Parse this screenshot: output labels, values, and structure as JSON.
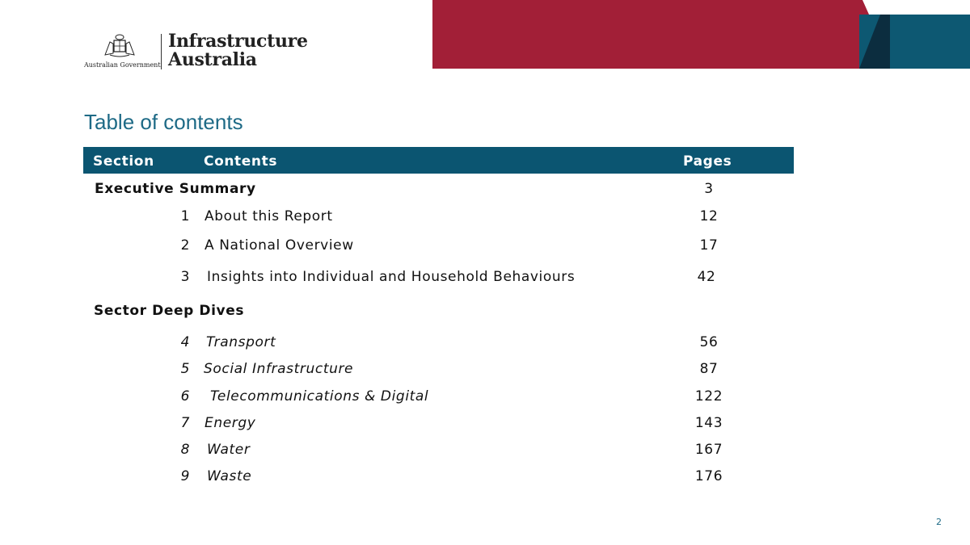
{
  "header": {
    "org_name_line1": "Infrastructure",
    "org_name_line2": "Australia",
    "government_label": "Australian Government",
    "colors": {
      "banner_red": "#a21f37",
      "banner_blue": "#0d5872",
      "banner_dark": "#0c2d3f"
    }
  },
  "page_title": "Table of contents",
  "table": {
    "columns": {
      "section": "Section",
      "contents": "Contents",
      "pages": "Pages"
    },
    "executive_summary": {
      "label": "Executive Summary",
      "page": "3"
    },
    "chapters": [
      {
        "num": "1",
        "title": "About this Report",
        "page": "12"
      },
      {
        "num": "2",
        "title": "A National Overview",
        "page": "17"
      },
      {
        "num": "3",
        "title": "Insights into Individual and Household Behaviours",
        "page": "42"
      }
    ],
    "deep_dives_label": "Sector Deep Dives",
    "deep_dives": [
      {
        "num": "4",
        "title": "Transport",
        "page": "56"
      },
      {
        "num": "5",
        "title": "Social Infrastructure",
        "page": "87"
      },
      {
        "num": "6",
        "title": "Telecommunications & Digital",
        "page": "122"
      },
      {
        "num": "7",
        "title": "Energy",
        "page": "143"
      },
      {
        "num": "8",
        "title": "Water",
        "page": "167"
      },
      {
        "num": "9",
        "title": "Waste",
        "page": "176"
      }
    ]
  },
  "footer": {
    "page_number": "2"
  }
}
